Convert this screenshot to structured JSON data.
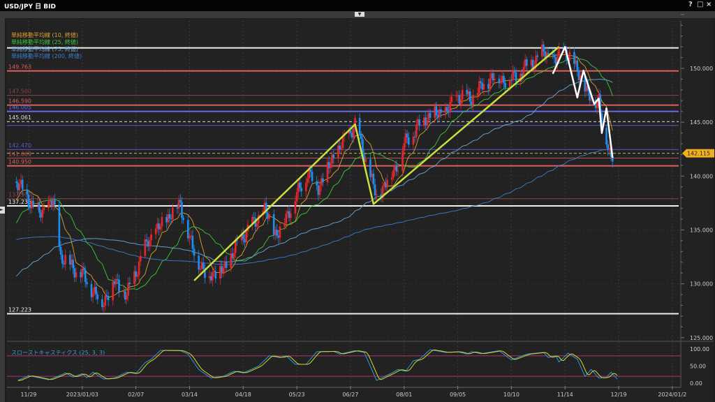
{
  "window": {
    "title": "USD/JPY 日 BID",
    "help_icon": "?",
    "maximize_icon": "□",
    "close_icon": "×"
  },
  "legend": [
    {
      "label": "単純移動平均線 (10, 終値)",
      "period": 10,
      "color": "#e0a030"
    },
    {
      "label": "単純移動平均線 (25, 終値)",
      "period": 25,
      "color": "#3cc83c"
    },
    {
      "label": "単純移動平均線 (75, 終値)",
      "period": 75,
      "color": "#6aaad8"
    },
    {
      "label": "単純移動平均線 (200, 終値)",
      "period": 200,
      "color": "#3a7fd0"
    }
  ],
  "colors": {
    "up": "#e8262a",
    "down": "#1e8ef0",
    "background": "#222222",
    "current_price": "#f0b020",
    "trend_lines": "#c8e040",
    "zigzag": "#ffffff"
  },
  "current_price": "142.115",
  "chart_data": {
    "type": "candlestick",
    "title": "",
    "y_axis": {
      "ticks": [
        "150.000",
        "145.000",
        "140.000",
        "135.000",
        "130.000",
        "125.000"
      ],
      "range": [
        124.5,
        155.5
      ],
      "side": "right"
    },
    "x_axis": {
      "ticks": [
        {
          "date": "2022-11-29",
          "label": "11/29"
        },
        {
          "date": "2023-01-03",
          "label": "2023/01/03"
        },
        {
          "date": "2023-02-07",
          "label": "02/07"
        },
        {
          "date": "2023-03-14",
          "label": "03/14"
        },
        {
          "date": "2023-04-18",
          "label": "04/18"
        },
        {
          "date": "2023-05-23",
          "label": "05/23"
        },
        {
          "date": "2023-06-27",
          "label": "06/27"
        },
        {
          "date": "2023-08-01",
          "label": "08/01"
        },
        {
          "date": "2023-09-05",
          "label": "09/05"
        },
        {
          "date": "2023-10-10",
          "label": "10/10"
        },
        {
          "date": "2023-11-14",
          "label": "11/14"
        },
        {
          "date": "2023-12-19",
          "label": "12/19"
        },
        {
          "date": "2024-01-23",
          "label": "2024/01/2"
        }
      ]
    },
    "close_path": [
      [
        "2022-11-21",
        139.5
      ],
      [
        "2022-11-29",
        137.8
      ],
      [
        "2022-12-06",
        136.5
      ],
      [
        "2022-12-15",
        137.6
      ],
      [
        "2022-12-20",
        132.5
      ],
      [
        "2023-01-03",
        130.8
      ],
      [
        "2023-01-16",
        128.2
      ],
      [
        "2023-01-24",
        130.2
      ],
      [
        "2023-02-01",
        128.9
      ],
      [
        "2023-02-07",
        131.2
      ],
      [
        "2023-02-15",
        134.0
      ],
      [
        "2023-02-28",
        136.2
      ],
      [
        "2023-03-08",
        137.5
      ],
      [
        "2023-03-14",
        134.0
      ],
      [
        "2023-03-24",
        130.8
      ],
      [
        "2023-04-05",
        131.3
      ],
      [
        "2023-04-18",
        134.5
      ],
      [
        "2023-05-02",
        136.8
      ],
      [
        "2023-05-10",
        134.5
      ],
      [
        "2023-05-30",
        140.3
      ],
      [
        "2023-06-06",
        139.0
      ],
      [
        "2023-06-16",
        141.8
      ],
      [
        "2023-06-30",
        144.8
      ],
      [
        "2023-07-14",
        138.0
      ],
      [
        "2023-07-28",
        141.2
      ],
      [
        "2023-08-01",
        143.0
      ],
      [
        "2023-08-15",
        145.5
      ],
      [
        "2023-08-29",
        146.0
      ],
      [
        "2023-09-05",
        147.5
      ],
      [
        "2023-09-13",
        147.2
      ],
      [
        "2023-09-27",
        149.2
      ],
      [
        "2023-10-04",
        149.0
      ],
      [
        "2023-10-10",
        149.0
      ],
      [
        "2023-10-31",
        151.5
      ],
      [
        "2023-11-08",
        150.6
      ],
      [
        "2023-11-13",
        151.8
      ],
      [
        "2023-11-24",
        149.5
      ],
      [
        "2023-11-29",
        147.3
      ],
      [
        "2023-12-06",
        147.1
      ],
      [
        "2023-12-08",
        144.7
      ],
      [
        "2023-12-14",
        141.9
      ],
      [
        "2023-12-15",
        142.1
      ]
    ],
    "levels": [
      {
        "value": 151.9,
        "label": "",
        "color": "#eeeeee",
        "style": "solid"
      },
      {
        "value": 149.763,
        "label": "149.763",
        "color": "#e06060",
        "style": "solid"
      },
      {
        "value": 147.5,
        "label": "147.500",
        "color": "#8a4545",
        "style": "thin"
      },
      {
        "value": 146.59,
        "label": "146.590",
        "color": "#e06060",
        "style": "solid"
      },
      {
        "value": 146.005,
        "label": "146.005",
        "color": "#6a6ae8",
        "style": "solid"
      },
      {
        "value": 145.061,
        "label": "145.061",
        "color": "#dddddd",
        "style": "dashed"
      },
      {
        "value": 144.7,
        "label": "",
        "color": "#5a5ad0",
        "style": "thin"
      },
      {
        "value": 142.47,
        "label": "142.470",
        "color": "#5a5ad0",
        "style": "thin"
      },
      {
        "value": 142.115,
        "label": "",
        "color": "#d0b040",
        "style": "dashed"
      },
      {
        "value": 141.669,
        "label": "141.669",
        "color": "#c05050",
        "style": "thin"
      },
      {
        "value": 140.95,
        "label": "140.950",
        "color": "#e06060",
        "style": "solid"
      },
      {
        "value": 137.9,
        "label": "137.900",
        "color": "#8a4545",
        "style": "thin"
      },
      {
        "value": 137.236,
        "label": "137.236",
        "color": "#eeeeee",
        "style": "solid"
      },
      {
        "value": 127.223,
        "label": "127.223",
        "color": "#eeeeee",
        "style": "solid"
      }
    ],
    "trend_lines": [
      [
        "2023-03-17",
        130.3
      ],
      [
        "2023-06-30",
        144.8
      ],
      [
        "2023-07-12",
        137.4
      ],
      [
        "2023-11-10",
        152.0
      ]
    ],
    "zigzag": [
      [
        "2023-11-06",
        149.5
      ],
      [
        "2023-11-14",
        152.0
      ],
      [
        "2023-11-22",
        147.3
      ],
      [
        "2023-11-26",
        149.8
      ],
      [
        "2023-12-03",
        146.7
      ],
      [
        "2023-12-06",
        147.2
      ],
      [
        "2023-12-08",
        144.0
      ],
      [
        "2023-12-11",
        146.3
      ],
      [
        "2023-12-15",
        141.7
      ]
    ]
  },
  "stochastic": {
    "label": "スローストキャスティクス (25, 3, 3)",
    "ticks": [
      "100.00",
      "50.00",
      "0.00"
    ],
    "bands": [
      80,
      20
    ],
    "k_path": [
      [
        "2022-11-22",
        8
      ],
      [
        "2022-11-29",
        22
      ],
      [
        "2022-12-12",
        10
      ],
      [
        "2022-12-19",
        22
      ],
      [
        "2022-12-23",
        30
      ],
      [
        "2022-12-28",
        18
      ],
      [
        "2023-01-03",
        28
      ],
      [
        "2023-01-06",
        16
      ],
      [
        "2023-01-10",
        32
      ],
      [
        "2023-01-17",
        12
      ],
      [
        "2023-01-24",
        15
      ],
      [
        "2023-02-01",
        32
      ],
      [
        "2023-02-07",
        28
      ],
      [
        "2023-02-13",
        60
      ],
      [
        "2023-02-17",
        70
      ],
      [
        "2023-02-23",
        96
      ],
      [
        "2023-03-08",
        95
      ],
      [
        "2023-03-13",
        85
      ],
      [
        "2023-03-20",
        40
      ],
      [
        "2023-03-28",
        15
      ],
      [
        "2023-04-05",
        20
      ],
      [
        "2023-04-12",
        35
      ],
      [
        "2023-04-18",
        30
      ],
      [
        "2023-04-28",
        50
      ],
      [
        "2023-05-05",
        80
      ],
      [
        "2023-05-12",
        75
      ],
      [
        "2023-05-16",
        80
      ],
      [
        "2023-05-22",
        55
      ],
      [
        "2023-05-29",
        55
      ],
      [
        "2023-06-05",
        92
      ],
      [
        "2023-06-16",
        93
      ],
      [
        "2023-06-20",
        85
      ],
      [
        "2023-06-30",
        95
      ],
      [
        "2023-07-06",
        90
      ],
      [
        "2023-07-14",
        8
      ],
      [
        "2023-07-24",
        30
      ],
      [
        "2023-07-28",
        40
      ],
      [
        "2023-08-02",
        35
      ],
      [
        "2023-08-07",
        65
      ],
      [
        "2023-08-11",
        70
      ],
      [
        "2023-08-18",
        98
      ],
      [
        "2023-08-28",
        90
      ],
      [
        "2023-09-05",
        92
      ],
      [
        "2023-09-11",
        85
      ],
      [
        "2023-09-14",
        92
      ],
      [
        "2023-09-20",
        86
      ],
      [
        "2023-10-02",
        95
      ],
      [
        "2023-10-10",
        68
      ],
      [
        "2023-10-20",
        85
      ],
      [
        "2023-10-31",
        90
      ],
      [
        "2023-11-03",
        75
      ],
      [
        "2023-11-08",
        80
      ],
      [
        "2023-11-10",
        62
      ],
      [
        "2023-11-16",
        88
      ],
      [
        "2023-11-22",
        70
      ],
      [
        "2023-11-27",
        20
      ],
      [
        "2023-12-01",
        40
      ],
      [
        "2023-12-06",
        15
      ],
      [
        "2023-12-11",
        17
      ],
      [
        "2023-12-14",
        32
      ],
      [
        "2023-12-18",
        12
      ]
    ],
    "k_color": "#2a9ad8",
    "d_color": "#d8d830"
  }
}
